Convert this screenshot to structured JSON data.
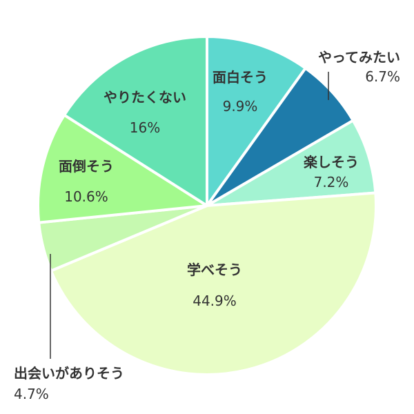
{
  "chart_data": {
    "type": "pie",
    "start_angle_deg": 0,
    "direction": "clockwise",
    "slices": [
      {
        "label": "面白そう",
        "value": 9.9,
        "value_label": "9.9%",
        "color": "#5dd8cf"
      },
      {
        "label": "やってみたい",
        "value": 6.7,
        "value_label": "6.7%",
        "color": "#1e7baa"
      },
      {
        "label": "楽しそう",
        "value": 7.2,
        "value_label": "7.2%",
        "color": "#a3f3d2"
      },
      {
        "label": "学べそう",
        "value": 44.9,
        "value_label": "44.9%",
        "color": "#e8fdc6"
      },
      {
        "label": "出会いがありそう",
        "value": 4.7,
        "value_label": "4.7%",
        "color": "#c6f9b0"
      },
      {
        "label": "面倒そう",
        "value": 10.6,
        "value_label": "10.6%",
        "color": "#a3fa8d"
      },
      {
        "label": "やりたくない",
        "value": 16,
        "value_label": "16%",
        "color": "#64e2b2"
      }
    ]
  }
}
